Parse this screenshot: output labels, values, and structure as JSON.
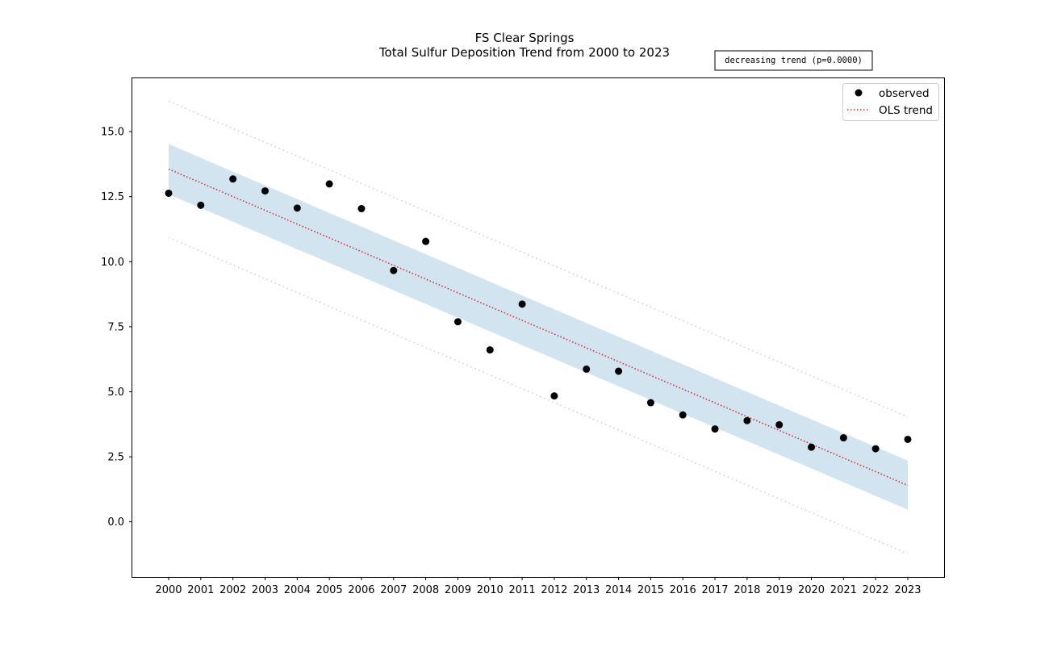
{
  "chart_data": {
    "type": "scatter",
    "title": "FS Clear Springs",
    "subtitle": "Total Sulfur Deposition Trend from 2000 to 2023",
    "annotation": "decreasing trend (p=0.0000)",
    "xlabel": "",
    "ylabel": "",
    "x": [
      2000,
      2001,
      2002,
      2003,
      2004,
      2005,
      2006,
      2007,
      2008,
      2009,
      2010,
      2011,
      2012,
      2013,
      2014,
      2015,
      2016,
      2017,
      2018,
      2019,
      2020,
      2021,
      2022,
      2023
    ],
    "x_tick_labels": [
      "2000",
      "2001",
      "2002",
      "2003",
      "2004",
      "2005",
      "2006",
      "2007",
      "2008",
      "2009",
      "2010",
      "2011",
      "2012",
      "2013",
      "2014",
      "2015",
      "2016",
      "2017",
      "2018",
      "2019",
      "2020",
      "2021",
      "2022",
      "2023"
    ],
    "y_ticks": [
      0.0,
      2.5,
      5.0,
      7.5,
      10.0,
      12.5,
      15.0
    ],
    "y_tick_labels": [
      "0.0",
      "2.5",
      "5.0",
      "7.5",
      "10.0",
      "12.5",
      "15.0"
    ],
    "xlim": [
      1998.87,
      2024.13
    ],
    "ylim": [
      -2.12,
      17.05
    ],
    "grid": false,
    "legend_position": "upper right",
    "series": [
      {
        "name": "observed",
        "kind": "scatter",
        "color": "#000000",
        "values": [
          12.63,
          12.17,
          13.18,
          12.72,
          12.06,
          12.99,
          12.04,
          9.66,
          10.78,
          7.69,
          6.61,
          8.37,
          4.84,
          5.87,
          5.79,
          4.58,
          4.11,
          3.57,
          3.89,
          3.73,
          2.87,
          3.23,
          2.81,
          3.17
        ]
      },
      {
        "name": "OLS trend",
        "kind": "line",
        "style": "dotted",
        "color": "#d62728",
        "start": 13.56,
        "end": 1.4
      }
    ],
    "confidence_band": {
      "color": "#1f77b4",
      "opacity": 0.2,
      "start": [
        12.59,
        14.52
      ],
      "end": [
        0.47,
        2.35
      ]
    },
    "prediction_band": {
      "color": "#cccccc",
      "style": "dotted",
      "start": [
        10.93,
        16.17
      ],
      "end": [
        -1.23,
        4.03
      ]
    }
  }
}
